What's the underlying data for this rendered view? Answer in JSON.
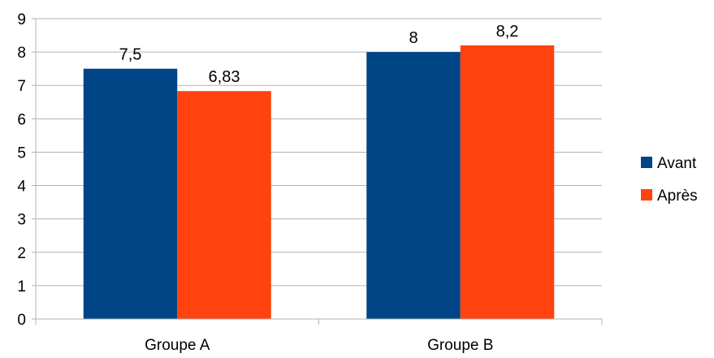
{
  "chart_data": {
    "type": "bar",
    "title": "",
    "xlabel": "",
    "ylabel": "",
    "categories": [
      "Groupe A",
      "Groupe B"
    ],
    "series": [
      {
        "name": "Avant",
        "values": [
          7.5,
          8
        ],
        "labels": [
          "7,5",
          "8"
        ],
        "color": "#004586"
      },
      {
        "name": "Après",
        "values": [
          6.83,
          8.2
        ],
        "labels": [
          "6,83",
          "8,2"
        ],
        "color": "#ff420e"
      }
    ],
    "ylim": [
      0,
      9
    ],
    "yticks": [
      "0",
      "1",
      "2",
      "3",
      "4",
      "5",
      "6",
      "7",
      "8",
      "9"
    ],
    "grid": true,
    "legend_position": "right"
  }
}
